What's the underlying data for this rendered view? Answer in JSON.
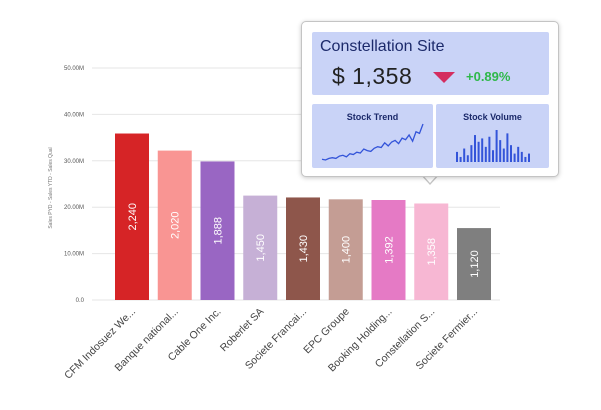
{
  "chart_data": {
    "type": "bar",
    "title": "",
    "xlabel": "",
    "ylabel": "Sales PYD - Sales YTD - Sales Qual",
    "ylim": [
      0,
      50000
    ],
    "y_ticks": [
      0,
      10000,
      20000,
      30000,
      40000,
      50000
    ],
    "y_tick_labels": [
      "0.0",
      "10.00M",
      "20.00M",
      "30.00M",
      "40.00M",
      "50.00M"
    ],
    "categories": [
      "CFM Indosuez We...",
      "Banque national...",
      "Cable One Inc.",
      "Roberlet SA",
      "Societe Francai...",
      "EPC Groupe",
      "Booking Holding...",
      "Constellation S...",
      "Societe Fermier..."
    ],
    "values": [
      35880,
      32200,
      29860,
      22500,
      22100,
      21700,
      21550,
      20800,
      15500
    ],
    "value_labels": [
      "2,240",
      "2,020",
      "1,888",
      "1,450",
      "1,430",
      "1,400",
      "1,392",
      "1,358",
      "1,120"
    ],
    "colors": [
      "#d62426",
      "#f99593",
      "#9966c3",
      "#c6b0d6",
      "#8e564b",
      "#c49d94",
      "#e57ac5",
      "#f7b7d3",
      "#7f7f7f"
    ],
    "grid": true,
    "legend": "none"
  },
  "tooltip": {
    "title": "Constellation Site",
    "price": "$ 1,358",
    "change": "+0.89%",
    "change_color": "#2eb84a",
    "down_arrow_color": "#d42d60",
    "trend_title": "Stock Trend",
    "volume_title": "Stock Volume",
    "trend_values": [
      3,
      2,
      4,
      5,
      4,
      7,
      8,
      6,
      10,
      9,
      12,
      11,
      16,
      14,
      13,
      17,
      19,
      18,
      24,
      20,
      25,
      27,
      23,
      30,
      28,
      34,
      26,
      38,
      36,
      48
    ],
    "volume_values": [
      6,
      3,
      8,
      4,
      10,
      16,
      12,
      14,
      9,
      15,
      7,
      19,
      13,
      8,
      17,
      10,
      5,
      9,
      6,
      3,
      5
    ]
  }
}
